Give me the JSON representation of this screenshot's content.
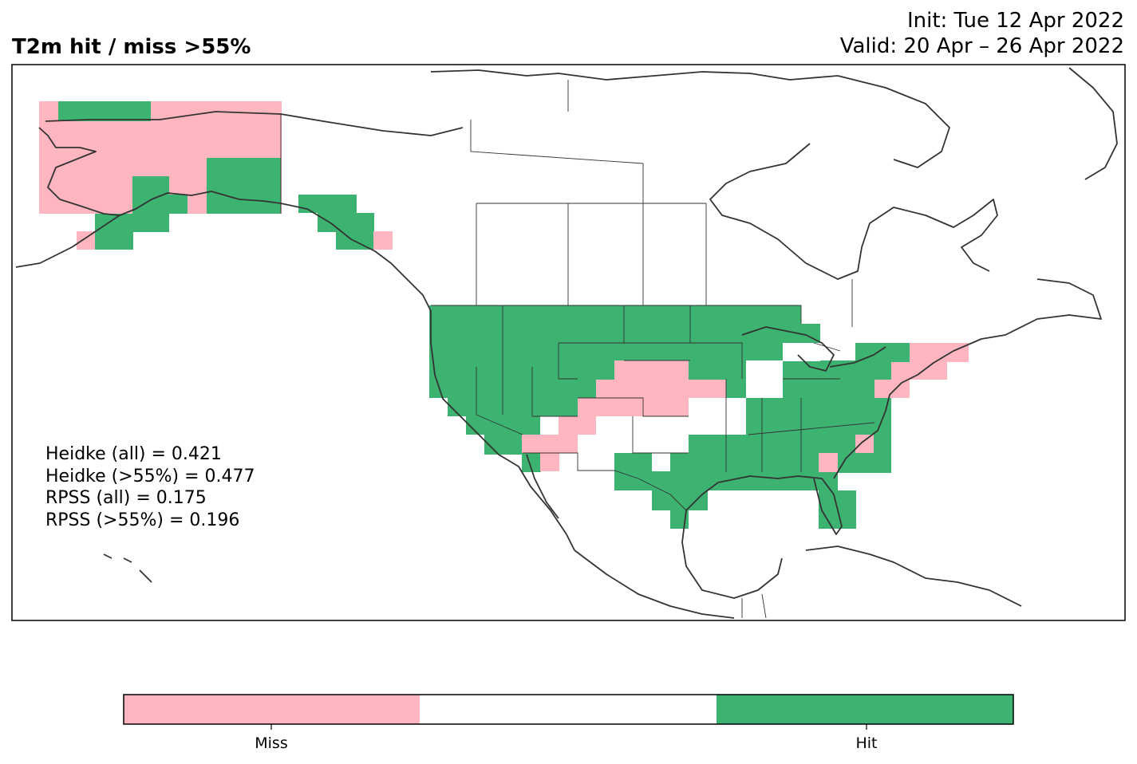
{
  "title": {
    "left": "T2m hit / miss  >55%",
    "init": "Init: Tue 12 Apr 2022",
    "valid": "Valid: 20 Apr – 26 Apr 2022"
  },
  "stats": [
    "Heidke (all) = 0.421",
    "Heidke (>55%) = 0.477",
    "RPSS (all) = 0.175",
    "RPSS (>55%) = 0.196"
  ],
  "colorbar": {
    "labels": [
      "Miss",
      "Hit"
    ],
    "colors": {
      "miss": "#ffb6c1",
      "neutral": "#ffffff",
      "hit": "#3cb371"
    }
  },
  "colors": {
    "miss": "#ffb6c1",
    "hit": "#3cb371",
    "coast": "#333333",
    "border": "#333333"
  }
}
